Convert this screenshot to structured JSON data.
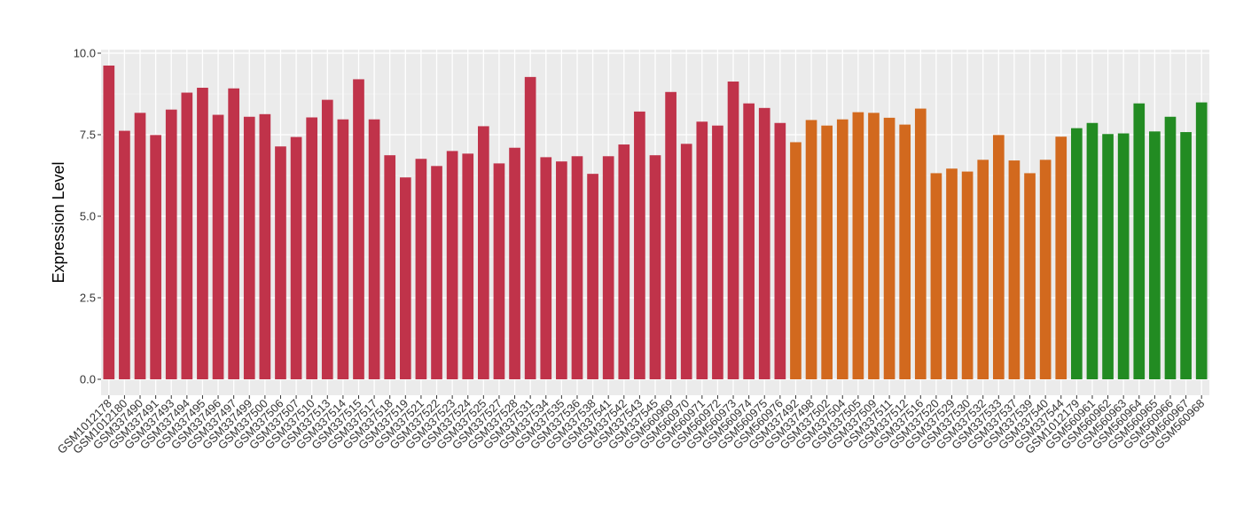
{
  "chart_data": {
    "type": "bar",
    "ylabel": "Expression Level",
    "xlabel": "",
    "ylim": [
      0,
      10
    ],
    "yticks": [
      "0.0",
      "2.5",
      "5.0",
      "7.5",
      "10.0"
    ],
    "ytick_values": [
      0,
      2.5,
      5,
      7.5,
      10
    ],
    "grid": true,
    "group_colors": [
      "#c0334a",
      "#d2691e",
      "#228b22"
    ],
    "categories": [
      "GSM1012178",
      "GSM1012180",
      "GSM337490",
      "GSM337491",
      "GSM337493",
      "GSM337494",
      "GSM337495",
      "GSM337496",
      "GSM337497",
      "GSM337499",
      "GSM337500",
      "GSM337506",
      "GSM337507",
      "GSM337510",
      "GSM337513",
      "GSM337514",
      "GSM337515",
      "GSM337517",
      "GSM337518",
      "GSM337519",
      "GSM337521",
      "GSM337522",
      "GSM337523",
      "GSM337524",
      "GSM337525",
      "GSM337527",
      "GSM337528",
      "GSM337531",
      "GSM337534",
      "GSM337535",
      "GSM337536",
      "GSM337538",
      "GSM337541",
      "GSM337542",
      "GSM337543",
      "GSM337545",
      "GSM560969",
      "GSM560970",
      "GSM560971",
      "GSM560972",
      "GSM560973",
      "GSM560974",
      "GSM560975",
      "GSM560976",
      "GSM337492",
      "GSM337498",
      "GSM337502",
      "GSM337504",
      "GSM337505",
      "GSM337509",
      "GSM337511",
      "GSM337512",
      "GSM337516",
      "GSM337520",
      "GSM337529",
      "GSM337530",
      "GSM337532",
      "GSM337533",
      "GSM337537",
      "GSM337539",
      "GSM337540",
      "GSM337544",
      "GSM1012179",
      "GSM560961",
      "GSM560962",
      "GSM560963",
      "GSM560964",
      "GSM560965",
      "GSM560966",
      "GSM560967",
      "GSM560968"
    ],
    "values": [
      9.62,
      7.62,
      8.17,
      7.49,
      8.27,
      8.79,
      8.94,
      8.11,
      8.92,
      8.05,
      8.13,
      7.14,
      7.43,
      8.03,
      8.57,
      7.97,
      9.2,
      7.97,
      6.87,
      6.19,
      6.76,
      6.54,
      7.0,
      6.92,
      7.76,
      6.62,
      7.1,
      9.27,
      6.81,
      6.68,
      6.84,
      6.3,
      6.84,
      7.2,
      8.21,
      6.87,
      8.81,
      7.22,
      7.9,
      7.78,
      9.13,
      8.46,
      8.32,
      7.86,
      7.27,
      7.95,
      7.78,
      7.97,
      8.19,
      8.17,
      8.02,
      7.81,
      8.3,
      6.32,
      6.46,
      6.37,
      6.73,
      7.49,
      6.71,
      6.32,
      6.73,
      7.44,
      7.7,
      7.86,
      7.52,
      7.54,
      8.46,
      7.6,
      8.05,
      7.58,
      8.49
    ],
    "groups": [
      0,
      0,
      0,
      0,
      0,
      0,
      0,
      0,
      0,
      0,
      0,
      0,
      0,
      0,
      0,
      0,
      0,
      0,
      0,
      0,
      0,
      0,
      0,
      0,
      0,
      0,
      0,
      0,
      0,
      0,
      0,
      0,
      0,
      0,
      0,
      0,
      0,
      0,
      0,
      0,
      0,
      0,
      0,
      0,
      1,
      1,
      1,
      1,
      1,
      1,
      1,
      1,
      1,
      1,
      1,
      1,
      1,
      1,
      1,
      1,
      1,
      1,
      2,
      2,
      2,
      2,
      2,
      2,
      2,
      2,
      2
    ]
  }
}
